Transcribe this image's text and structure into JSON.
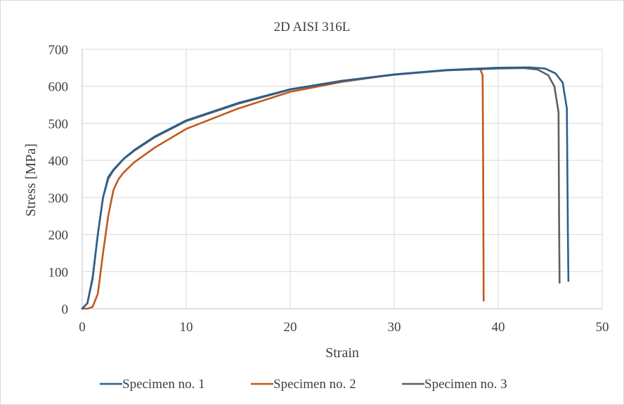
{
  "chart_data": {
    "type": "line",
    "title": "2D AISI 316L",
    "xlabel": "Strain",
    "ylabel": "Stress [MPa]",
    "xlim": [
      0,
      50
    ],
    "ylim": [
      0,
      700
    ],
    "xticks": [
      "0",
      "10",
      "20",
      "30",
      "40",
      "50"
    ],
    "yticks": [
      "0",
      "100",
      "200",
      "300",
      "400",
      "500",
      "600",
      "700"
    ],
    "grid": true,
    "legend_position": "bottom",
    "series": [
      {
        "name": "Specimen no. 1",
        "color": "#2e5f8a",
        "x": [
          0,
          0.5,
          1.0,
          1.5,
          2.0,
          2.5,
          3.0,
          4.0,
          5.0,
          7.0,
          10.0,
          15.0,
          20.0,
          25.0,
          30.0,
          35.0,
          40.0,
          43.0,
          44.5,
          45.5,
          46.2,
          46.6,
          46.7,
          46.75
        ],
        "y": [
          0,
          15,
          80,
          200,
          300,
          355,
          375,
          405,
          428,
          465,
          508,
          555,
          592,
          615,
          632,
          644,
          650,
          651,
          648,
          635,
          610,
          540,
          200,
          75
        ]
      },
      {
        "name": "Specimen no. 2",
        "color": "#c0591b",
        "x": [
          0,
          0.5,
          1.0,
          1.5,
          2.0,
          2.5,
          3.0,
          3.5,
          4.0,
          5.0,
          7.0,
          10.0,
          15.0,
          20.0,
          25.0,
          30.0,
          35.0,
          37.5,
          38.3,
          38.5,
          38.55,
          38.6
        ],
        "y": [
          0,
          0,
          5,
          40,
          150,
          250,
          320,
          350,
          368,
          395,
          435,
          485,
          540,
          585,
          612,
          632,
          643,
          647,
          645,
          630,
          400,
          22
        ]
      },
      {
        "name": "Specimen no. 3",
        "color": "#5f5f5f",
        "x": [
          0,
          0.5,
          1.0,
          1.5,
          2.0,
          2.5,
          3.0,
          4.0,
          5.0,
          7.0,
          10.0,
          15.0,
          20.0,
          25.0,
          30.0,
          35.0,
          40.0,
          42.5,
          43.8,
          44.8,
          45.4,
          45.8,
          45.85,
          45.9
        ],
        "y": [
          0,
          15,
          85,
          200,
          300,
          350,
          373,
          404,
          426,
          463,
          506,
          553,
          591,
          614,
          631,
          643,
          648,
          649,
          645,
          630,
          600,
          530,
          250,
          70
        ]
      }
    ]
  }
}
